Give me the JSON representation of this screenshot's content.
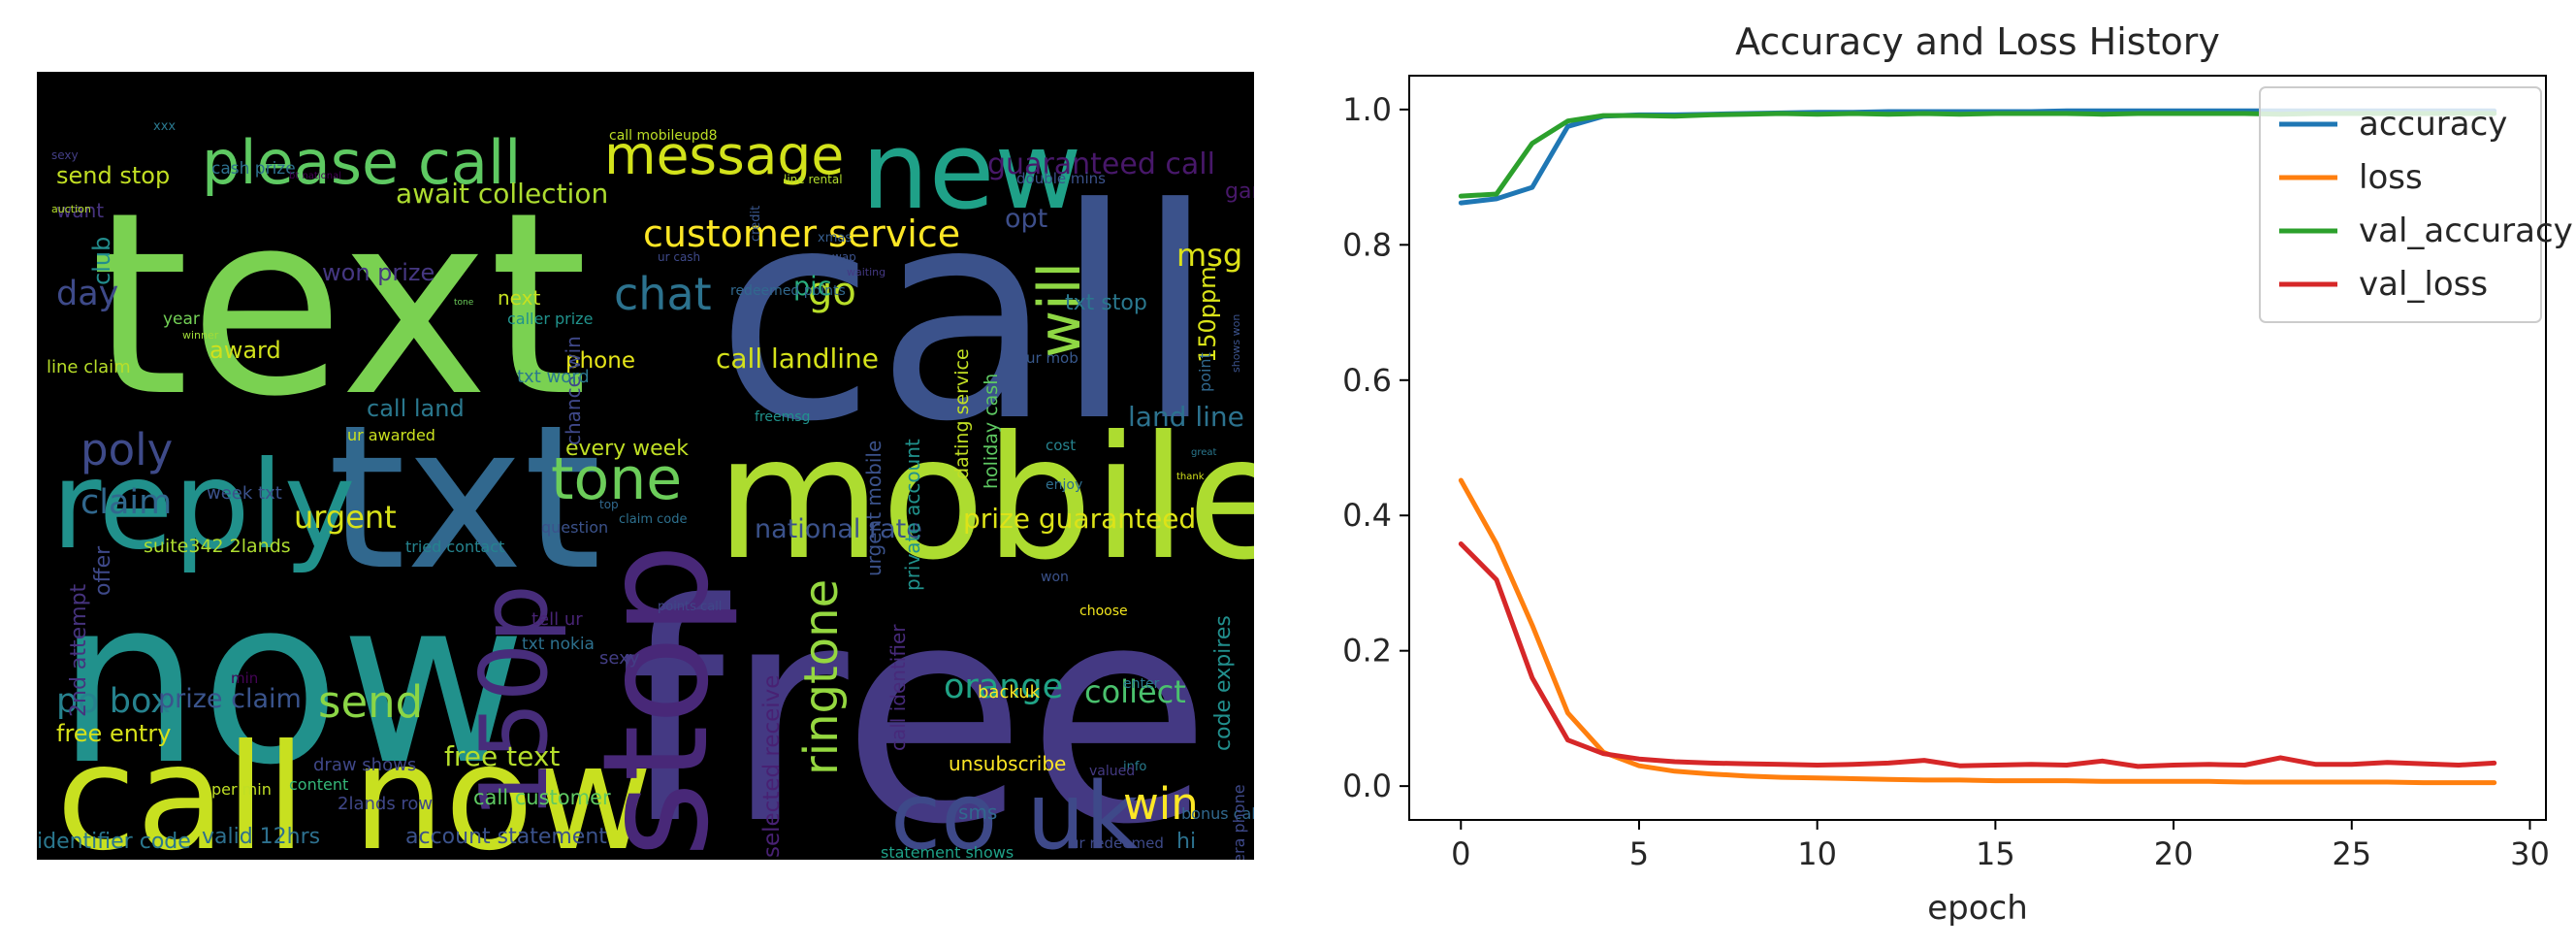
{
  "wordcloud": {
    "background": "#000000",
    "words": [
      {
        "text": "text",
        "color": "#7ad151"
      },
      {
        "text": "call",
        "color": "#3b528b"
      },
      {
        "text": "free",
        "color": "#443983"
      },
      {
        "text": "now",
        "color": "#21918c"
      },
      {
        "text": "txt",
        "color": "#31688e"
      },
      {
        "text": "mobile",
        "color": "#addc30"
      },
      {
        "text": "call now",
        "color": "#c8e020"
      },
      {
        "text": "reply",
        "color": "#21918c"
      },
      {
        "text": "new",
        "color": "#1fa188"
      },
      {
        "text": "stop",
        "color": "#482878"
      },
      {
        "text": "co uk",
        "color": "#3e4989"
      },
      {
        "text": "150p",
        "color": "#472d7b"
      },
      {
        "text": "please call",
        "color": "#5ec962"
      },
      {
        "text": "message",
        "color": "#d2e21b"
      },
      {
        "text": "customer service",
        "color": "#fde725"
      },
      {
        "text": "tone",
        "color": "#6ccd5a"
      },
      {
        "text": "poly",
        "color": "#3e4a89"
      },
      {
        "text": "win",
        "color": "#fde725"
      },
      {
        "text": "chat",
        "color": "#2c728e"
      },
      {
        "text": "go",
        "color": "#b8de29"
      },
      {
        "text": "will",
        "color": "#8fd744"
      },
      {
        "text": "msg",
        "color": "#dde318"
      },
      {
        "text": "guaranteed call",
        "color": "#48186a"
      },
      {
        "text": "ringtone",
        "color": "#95d840"
      },
      {
        "text": "orange",
        "color": "#20a386"
      },
      {
        "text": "send",
        "color": "#8bd646"
      },
      {
        "text": "collect",
        "color": "#4ac16d"
      },
      {
        "text": "claim",
        "color": "#31688e"
      },
      {
        "text": "urgent",
        "color": "#d8e219"
      },
      {
        "text": "national rate",
        "color": "#3b528b"
      },
      {
        "text": "prize guaranteed",
        "color": "#dde318"
      },
      {
        "text": "call landline",
        "color": "#d5e21a"
      },
      {
        "text": "day",
        "color": "#3e4a89"
      },
      {
        "text": "po box",
        "color": "#26828e"
      },
      {
        "text": "free text",
        "color": "#b5de2b"
      },
      {
        "text": "await collection",
        "color": "#addc30"
      },
      {
        "text": "won prize",
        "color": "#453781"
      },
      {
        "text": "call land",
        "color": "#2a788e"
      },
      {
        "text": "land line",
        "color": "#2c728e"
      },
      {
        "text": "award",
        "color": "#d0e11c"
      },
      {
        "text": "phone",
        "color": "#e5e419"
      },
      {
        "text": "every week",
        "color": "#c0df25"
      },
      {
        "text": "pic",
        "color": "#29af7f"
      },
      {
        "text": "opt",
        "color": "#3d4e8a"
      },
      {
        "text": "150ppm",
        "color": "#dae319"
      },
      {
        "text": "txt stop",
        "color": "#2a788e"
      },
      {
        "text": "game",
        "color": "#48186a"
      },
      {
        "text": "prize claim",
        "color": "#3a548c"
      },
      {
        "text": "free entry",
        "color": "#d8e219"
      },
      {
        "text": "send stop",
        "color": "#c2df23"
      },
      {
        "text": "account statement",
        "color": "#3b528b"
      },
      {
        "text": "valid 12hrs",
        "color": "#2d708e"
      },
      {
        "text": "identifier code",
        "color": "#2a778e"
      },
      {
        "text": "unsubscribe",
        "color": "#fde725"
      },
      {
        "text": "sms",
        "color": "#31688e"
      },
      {
        "text": "hi",
        "color": "#2c718e"
      },
      {
        "text": "offer",
        "color": "#3e4989"
      },
      {
        "text": "code expires",
        "color": "#218f8d"
      },
      {
        "text": "2nd attempt",
        "color": "#46337e"
      },
      {
        "text": "draw shows",
        "color": "#3f4788"
      },
      {
        "text": "call customer",
        "color": "#5ec962"
      },
      {
        "text": "selected receive",
        "color": "#482173"
      },
      {
        "text": "urgent mobile",
        "color": "#3b528b"
      },
      {
        "text": "private account",
        "color": "#20928c"
      },
      {
        "text": "call identifier",
        "color": "#472a7a"
      },
      {
        "text": "chance win",
        "color": "#3f4889"
      },
      {
        "text": "club",
        "color": "#228d8d"
      },
      {
        "text": "line claim",
        "color": "#b8de29"
      },
      {
        "text": "suite342 2lands",
        "color": "#addc30"
      },
      {
        "text": "week txt",
        "color": "#3b528b"
      },
      {
        "text": "want",
        "color": "#46327e"
      },
      {
        "text": "tell ur",
        "color": "#482475"
      },
      {
        "text": "sexy",
        "color": "#433e85"
      },
      {
        "text": "txt nokia",
        "color": "#2d708e"
      },
      {
        "text": "question",
        "color": "#3b528b"
      },
      {
        "text": "tried contact",
        "color": "#25838e"
      },
      {
        "text": "year",
        "color": "#73d056"
      },
      {
        "text": "next",
        "color": "#c5e021"
      },
      {
        "text": "caller prize",
        "color": "#20928c"
      },
      {
        "text": "txt word",
        "color": "#2a778e"
      },
      {
        "text": "dating service",
        "color": "#c2df23"
      },
      {
        "text": "holiday cash",
        "color": "#5ec962"
      },
      {
        "text": "2lands row",
        "color": "#3f4788"
      },
      {
        "text": "content",
        "color": "#35b779"
      },
      {
        "text": "point",
        "color": "#31688e"
      },
      {
        "text": "cash prize",
        "color": "#2d708e"
      },
      {
        "text": "double mins",
        "color": "#3b528b"
      },
      {
        "text": "xmas",
        "color": "#365d8d"
      },
      {
        "text": "redeemed points",
        "color": "#31688e"
      },
      {
        "text": "bonus caller",
        "color": "#31688e"
      },
      {
        "text": "camera phone",
        "color": "#3e4989"
      },
      {
        "text": "enjoy",
        "color": "#2e6e8e"
      },
      {
        "text": "cost",
        "color": "#26828e"
      },
      {
        "text": "won",
        "color": "#3b528b"
      },
      {
        "text": "choose",
        "color": "#f1e51d"
      },
      {
        "text": "enter",
        "color": "#2a788e"
      },
      {
        "text": "info",
        "color": "#287c8e"
      },
      {
        "text": "valued",
        "color": "#443a83"
      },
      {
        "text": "ur redeemed",
        "color": "#3e4a89"
      },
      {
        "text": "statement shows",
        "color": "#1fa188"
      },
      {
        "text": "claim code",
        "color": "#2d708e"
      },
      {
        "text": "points call",
        "color": "#3f4788"
      },
      {
        "text": "call mobileupd8",
        "color": "#bddf26"
      },
      {
        "text": "ur awarded",
        "color": "#cae11f"
      },
      {
        "text": "ur mob",
        "color": "#38588c"
      },
      {
        "text": "freemsg",
        "color": "#20928c"
      },
      {
        "text": "min",
        "color": "#450457"
      },
      {
        "text": "per min",
        "color": "#c0df25"
      },
      {
        "text": "top",
        "color": "#31688e"
      },
      {
        "text": "xxx",
        "color": "#2a788e"
      },
      {
        "text": "wap",
        "color": "#3b528b"
      },
      {
        "text": "waiting",
        "color": "#443983"
      },
      {
        "text": "sexy",
        "color": "#433e85"
      },
      {
        "text": "auction",
        "color": "#b5de2b"
      },
      {
        "text": "winner",
        "color": "#a0da39"
      },
      {
        "text": "credit",
        "color": "#39568c"
      },
      {
        "text": "ur cash",
        "color": "#3e4989"
      },
      {
        "text": "line rental",
        "color": "#b2dd2d"
      },
      {
        "text": "bt national",
        "color": "#440154"
      },
      {
        "text": "great",
        "color": "#2a788e"
      },
      {
        "text": "thank",
        "color": "#d2e21b"
      },
      {
        "text": "backuk",
        "color": "#fde725"
      },
      {
        "text": "shows won",
        "color": "#3b528b"
      },
      {
        "text": "tone",
        "color": "#6ccd5a"
      }
    ]
  },
  "chart_data": {
    "type": "line",
    "title": "Accuracy and Loss History",
    "xlabel": "epoch",
    "ylabel": "",
    "xlim": [
      -1.45,
      30.45
    ],
    "ylim": [
      -0.05,
      1.05
    ],
    "xticks": [
      0,
      5,
      10,
      15,
      20,
      25,
      30
    ],
    "yticks": [
      0.0,
      0.2,
      0.4,
      0.6,
      0.8,
      1.0
    ],
    "xtick_labels": [
      "0",
      "5",
      "10",
      "15",
      "20",
      "25",
      "30"
    ],
    "ytick_labels": [
      "0.0",
      "0.2",
      "0.4",
      "0.6",
      "0.8",
      "1.0"
    ],
    "grid": false,
    "legend_position": "top-right",
    "x": [
      0,
      1,
      2,
      3,
      4,
      5,
      6,
      7,
      8,
      9,
      10,
      11,
      12,
      13,
      14,
      15,
      16,
      17,
      18,
      19,
      20,
      21,
      22,
      23,
      24,
      25,
      26,
      27,
      28,
      29
    ],
    "series": [
      {
        "name": "accuracy",
        "color": "#1f77b4",
        "values": [
          0.862,
          0.868,
          0.885,
          0.975,
          0.99,
          0.992,
          0.992,
          0.993,
          0.994,
          0.995,
          0.996,
          0.996,
          0.997,
          0.997,
          0.997,
          0.997,
          0.997,
          0.998,
          0.998,
          0.998,
          0.998,
          0.998,
          0.998,
          0.998,
          0.998,
          0.998,
          0.998,
          0.998,
          0.998,
          0.998
        ]
      },
      {
        "name": "loss",
        "color": "#ff7f0e",
        "values": [
          0.452,
          0.358,
          0.238,
          0.108,
          0.05,
          0.03,
          0.022,
          0.018,
          0.015,
          0.013,
          0.012,
          0.011,
          0.01,
          0.009,
          0.009,
          0.008,
          0.008,
          0.008,
          0.007,
          0.007,
          0.007,
          0.007,
          0.006,
          0.006,
          0.006,
          0.006,
          0.006,
          0.005,
          0.005,
          0.005
        ]
      },
      {
        "name": "val_accuracy",
        "color": "#2ca02c",
        "values": [
          0.872,
          0.875,
          0.95,
          0.983,
          0.991,
          0.991,
          0.99,
          0.992,
          0.993,
          0.994,
          0.993,
          0.994,
          0.993,
          0.994,
          0.993,
          0.994,
          0.994,
          0.994,
          0.993,
          0.994,
          0.994,
          0.994,
          0.994,
          0.993,
          0.994,
          0.994,
          0.994,
          0.994,
          0.994,
          0.994
        ]
      },
      {
        "name": "val_loss",
        "color": "#d62728",
        "values": [
          0.358,
          0.305,
          0.16,
          0.068,
          0.048,
          0.04,
          0.036,
          0.034,
          0.033,
          0.032,
          0.031,
          0.032,
          0.034,
          0.038,
          0.03,
          0.031,
          0.032,
          0.031,
          0.037,
          0.029,
          0.031,
          0.032,
          0.031,
          0.042,
          0.032,
          0.032,
          0.035,
          0.033,
          0.031,
          0.034
        ]
      }
    ]
  }
}
